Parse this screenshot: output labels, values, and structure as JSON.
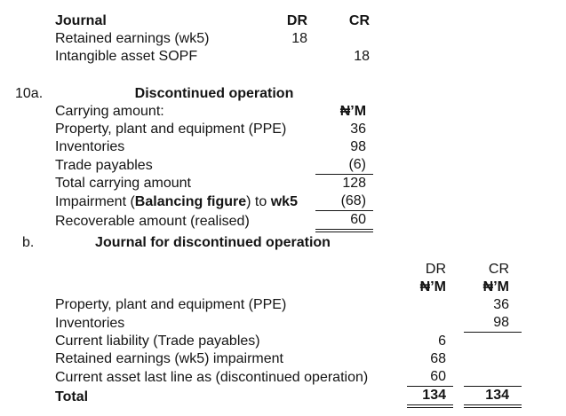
{
  "page": {
    "background": "#ffffff",
    "text_color": "#141414"
  },
  "journal1": {
    "title": "Journal",
    "dr_header": "DR",
    "cr_header": "CR",
    "rows": [
      {
        "label": "Retained earnings (wk5)",
        "dr": "18",
        "cr": ""
      },
      {
        "label": "Intangible asset SOPF",
        "dr": "",
        "cr": "18"
      }
    ]
  },
  "section_a": {
    "item_number": "10a.",
    "title": "Discontinued operation",
    "subheader": {
      "label": "Carrying amount:",
      "unit": "₦’M"
    },
    "rows": [
      {
        "label": "Property, plant and equipment (PPE)",
        "value": "36"
      },
      {
        "label": "Inventories",
        "value": "98"
      },
      {
        "label": "Trade payables",
        "value": "(6)"
      },
      {
        "label": "Total carrying amount",
        "value": "128"
      },
      {
        "label_parts": [
          "Impairment (",
          "Balancing figure",
          ") to ",
          "wk5"
        ],
        "value": "(68)"
      },
      {
        "label": "Recoverable amount (realised)",
        "value": "60"
      }
    ]
  },
  "section_b": {
    "item_number": "b.",
    "title": "Journal for discontinued operation",
    "dr_header": "DR",
    "cr_header": "CR",
    "dr_unit": "₦’M",
    "cr_unit": "₦’M",
    "rows": [
      {
        "label": "Property, plant and equipment (PPE)",
        "dr": "",
        "cr": "36"
      },
      {
        "label": "Inventories",
        "dr": "",
        "cr": "98"
      },
      {
        "label": "Current liability (Trade payables)",
        "dr": "6",
        "cr": ""
      },
      {
        "label": "Retained earnings (wk5) impairment",
        "dr": "68",
        "cr": ""
      },
      {
        "label": "Current asset last line as (discontinued operation)",
        "dr": "60",
        "cr": ""
      },
      {
        "label": "Total",
        "dr": "134",
        "cr": "134"
      }
    ]
  }
}
